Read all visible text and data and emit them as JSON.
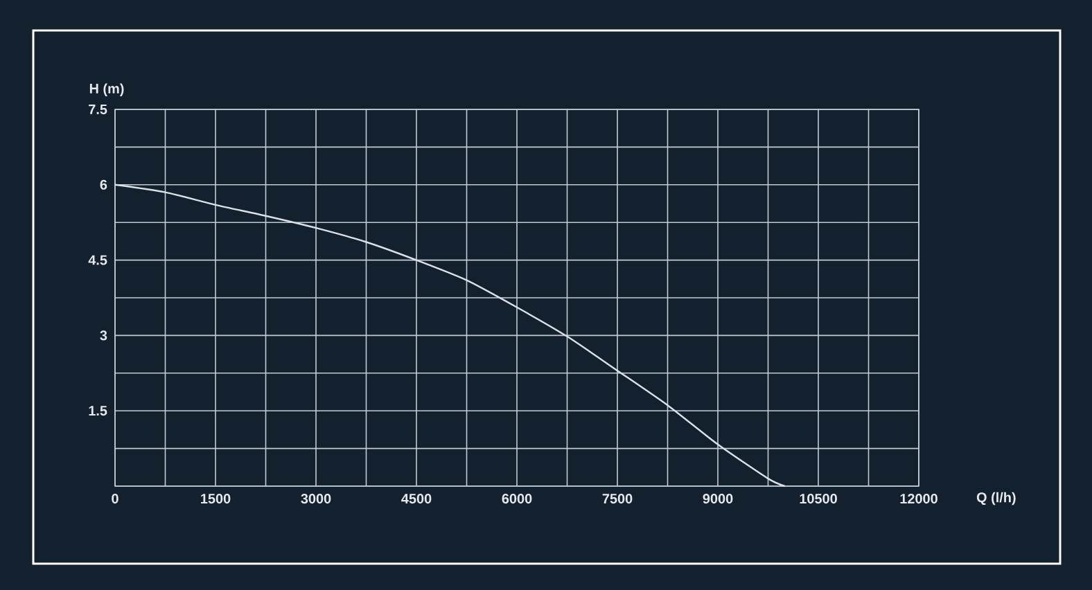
{
  "chart_data": {
    "type": "line",
    "xlabel": "Q (l/h)",
    "ylabel": "H (m)",
    "x": [
      0,
      750,
      1500,
      2250,
      3000,
      3750,
      4500,
      5250,
      6000,
      6750,
      7500,
      8250,
      9000,
      9750,
      10000
    ],
    "series": [
      {
        "color": "#dce1e6",
        "values": [
          6.0,
          5.85,
          5.6,
          5.38,
          5.14,
          4.86,
          4.5,
          4.1,
          3.56,
          2.98,
          2.3,
          1.61,
          0.83,
          0.15,
          0
        ]
      }
    ],
    "xlim": [
      0,
      12000
    ],
    "ylim": [
      0,
      7.5
    ],
    "xticks": [
      0,
      {
        "value": 750,
        "label": null
      },
      1500,
      {
        "value": 2250,
        "label": null
      },
      3000,
      {
        "value": 3750,
        "label": null
      },
      4500,
      {
        "value": 5250,
        "label": null
      },
      6000,
      {
        "value": 6750,
        "label": null
      },
      7500,
      {
        "value": 8250,
        "label": null
      },
      9000,
      {
        "value": 9750,
        "label": null
      },
      10500,
      {
        "value": 11250,
        "label": null
      },
      12000
    ],
    "yticks": [
      {
        "value": 0,
        "label": null
      },
      {
        "value": 0.75,
        "label": null
      },
      1.5,
      {
        "value": 2.25,
        "label": null
      },
      3,
      {
        "value": 3.75,
        "label": null
      },
      4.5,
      {
        "value": 5.25,
        "label": null
      },
      6,
      {
        "value": 6.75,
        "label": null
      },
      7.5
    ],
    "grid": true,
    "marker": "none",
    "line_style": "solid"
  }
}
